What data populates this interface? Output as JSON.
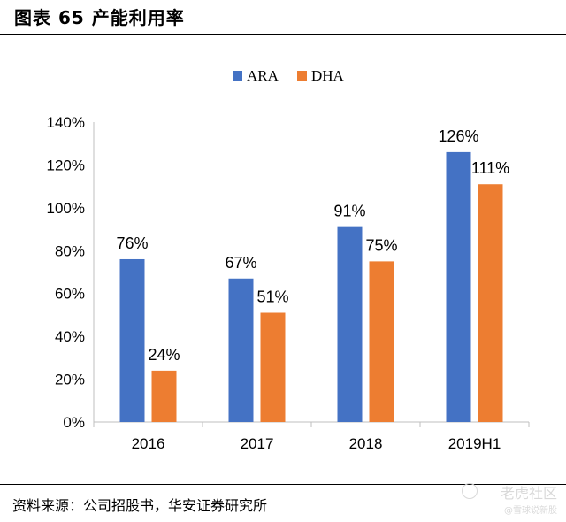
{
  "header": {
    "title": "图表 65 产能利用率"
  },
  "footer": {
    "source": "资料来源：公司招股书，华安证券研究所"
  },
  "watermark": {
    "line1": "老虎社区",
    "line2": "@雪球说新股"
  },
  "colors": {
    "ARA": "#4472C4",
    "DHA": "#ED7D31",
    "axis": "#BFBFBF"
  },
  "chart_data": {
    "type": "bar",
    "title": "",
    "categories": [
      "2016",
      "2017",
      "2018",
      "2019H1"
    ],
    "series": [
      {
        "name": "ARA",
        "values": [
          76,
          67,
          91,
          126
        ],
        "labels": [
          "76%",
          "67%",
          "91%",
          "126%"
        ]
      },
      {
        "name": "DHA",
        "values": [
          24,
          51,
          75,
          111
        ],
        "labels": [
          "24%",
          "51%",
          "75%",
          "111%"
        ]
      }
    ],
    "ylim": [
      0,
      140
    ],
    "yticks": [
      0,
      20,
      40,
      60,
      80,
      100,
      120,
      140
    ],
    "ytick_labels": [
      "0%",
      "20%",
      "40%",
      "60%",
      "80%",
      "100%",
      "120%",
      "140%"
    ],
    "xlabel": "",
    "ylabel": "",
    "grid": false,
    "legend": "top-center"
  }
}
